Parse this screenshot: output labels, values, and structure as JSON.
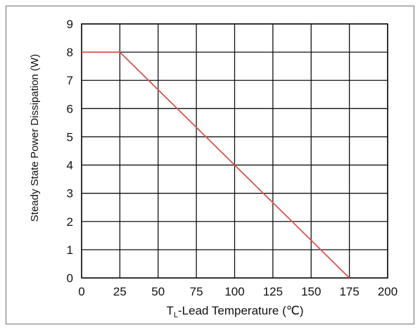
{
  "chart_data": {
    "type": "line",
    "title": "",
    "xlabel": {
      "prefix": "T",
      "subscript": "L",
      "suffix": "-Lead Temperature (℃)"
    },
    "ylabel": "Steady State Power Dissipation (W)",
    "xlim": [
      0,
      200
    ],
    "ylim": [
      0,
      9
    ],
    "x_ticks": [
      0,
      25,
      50,
      75,
      100,
      125,
      150,
      175,
      200
    ],
    "x_tick_labels": [
      "0",
      "25",
      "50",
      "75",
      "100",
      "125",
      "150",
      "175",
      "200"
    ],
    "y_ticks": [
      0,
      1,
      2,
      3,
      4,
      5,
      6,
      7,
      8,
      9
    ],
    "y_tick_labels": [
      "0",
      "1",
      "2",
      "3",
      "4",
      "5",
      "6",
      "7",
      "8",
      "9"
    ],
    "grid": true,
    "legend": "none",
    "series": [
      {
        "x": [
          0,
          25,
          175
        ],
        "y": [
          8,
          8,
          0
        ],
        "color": "#d9534f"
      }
    ]
  }
}
